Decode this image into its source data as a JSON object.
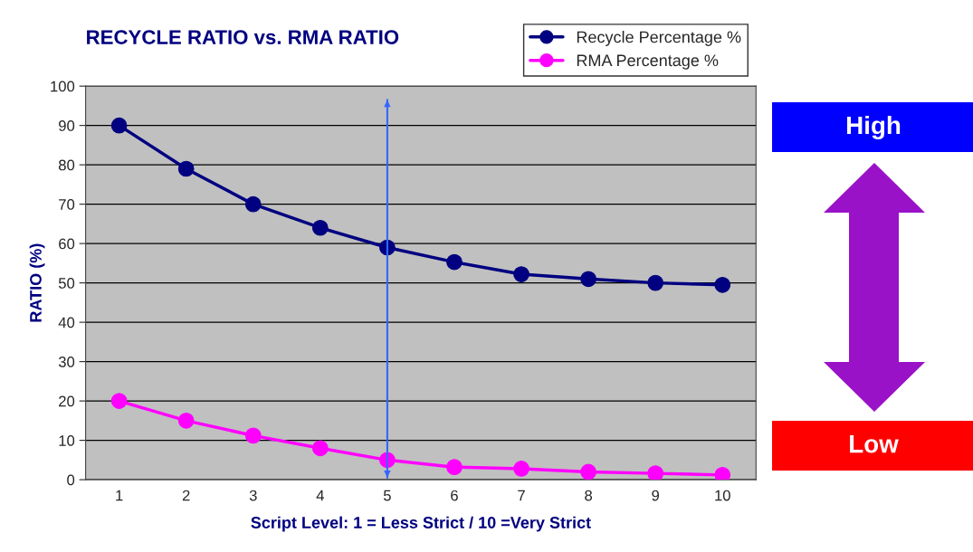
{
  "chart_data": {
    "type": "line",
    "title": "RECYCLE RATIO vs. RMA RATIO",
    "xlabel": "Script Level: 1 = Less Strict / 10 =Very Strict",
    "ylabel": "RATIO (%)",
    "categories": [
      "1",
      "2",
      "3",
      "4",
      "5",
      "6",
      "7",
      "8",
      "9",
      "10"
    ],
    "series": [
      {
        "name": "Recycle Percentage %",
        "color": "#000080",
        "values": [
          90,
          79,
          70,
          64,
          59,
          55.3,
          52.2,
          51,
          50,
          49.5
        ]
      },
      {
        "name": "RMA Percentage %",
        "color": "#ff00ff",
        "values": [
          20,
          15,
          11.2,
          8,
          5,
          3.2,
          2.8,
          2,
          1.6,
          1.2
        ]
      }
    ],
    "ylim": [
      0,
      100
    ],
    "yticks": [
      0,
      10,
      20,
      30,
      40,
      50,
      60,
      70,
      80,
      90,
      100
    ],
    "grid": "y",
    "legend": "top right",
    "marker": "circle",
    "line_style": "solid",
    "ref_lines": [
      {
        "axis": "x",
        "value": "5",
        "color": "#3366ff"
      }
    ],
    "annotations": [
      "High",
      "Low"
    ]
  }
}
